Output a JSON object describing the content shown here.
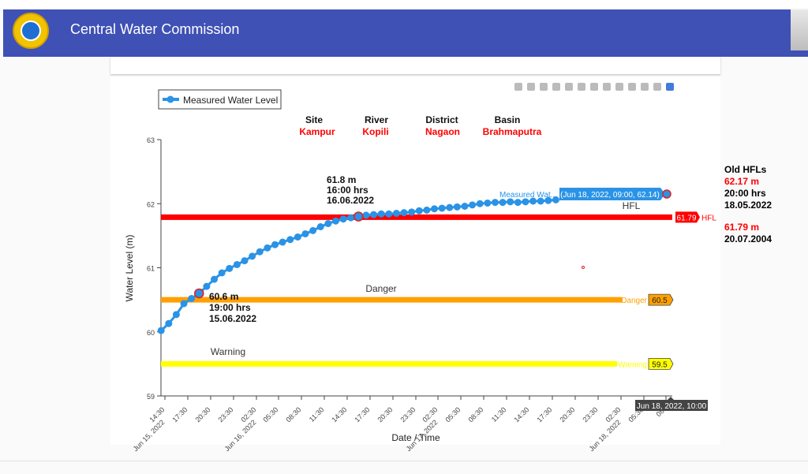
{
  "app": {
    "title": "Central Water Commission"
  },
  "modebar": {
    "icons": [
      "camera-icon",
      "zoom-icon",
      "pan-icon",
      "box-select-icon",
      "lasso-icon",
      "zoom-in-icon",
      "zoom-out-icon",
      "autoscale-icon",
      "reset-axes-icon",
      "spike-lines-icon",
      "hover-closest-icon",
      "hover-compare-icon",
      "plotly-logo-icon"
    ]
  },
  "info": {
    "site_label": "Site",
    "site_value": "Kampur",
    "river_label": "River",
    "river_value": "Kopili",
    "district_label": "District",
    "district_value": "Nagaon",
    "basin_label": "Basin",
    "basin_value": "Brahmaputra"
  },
  "annotations": {
    "low": {
      "level": "60.6 m",
      "time": "19:00 hrs",
      "date": "15.06.2022"
    },
    "mid": {
      "level": "61.8 m",
      "time": "16:00 hrs",
      "date": "16.06.2022"
    },
    "hover_label": "Measured Wat...",
    "hover_value": "(Jun 18, 2022, 09:00, 62.14)",
    "x_hover": "Jun 18, 2022, 10:00"
  },
  "old_hfls": {
    "title": "Old HFLs",
    "entries": [
      {
        "level": "62.17 m",
        "time": "20:00 hrs",
        "date": "18.05.2022"
      },
      {
        "level": "61.79 m",
        "date": "20.07.2004"
      }
    ]
  },
  "chart_data": {
    "type": "line",
    "title": "",
    "xlabel": "Date / Time",
    "ylabel": "Water Level (m)",
    "ylim": [
      59,
      63
    ],
    "yticks": [
      "59",
      "60",
      "61",
      "62",
      "63"
    ],
    "xticks": [
      "14:30",
      "Jun 15, 2022",
      "17:30",
      "20:30",
      "23:30",
      "02:30",
      "Jun 16, 2022",
      "05:30",
      "08:30",
      "11:30",
      "14:30",
      "17:30",
      "20:30",
      "23:30",
      "02:30",
      "Jun 17, 2022",
      "05:30",
      "08:30",
      "11:30",
      "14:30",
      "17:30",
      "20:30",
      "23:30",
      "02:30",
      "Jun 18, 2022",
      "05:30",
      "08:"
    ],
    "grid": false,
    "legend": "top-left",
    "series": [
      {
        "name": "Measured Water Level",
        "color": "#2a93e6",
        "x": [
          "15-06 14:00",
          "15-06 15:00",
          "15-06 16:00",
          "15-06 17:00",
          "15-06 18:00",
          "15-06 19:00",
          "15-06 20:00",
          "15-06 21:00",
          "15-06 22:00",
          "15-06 23:00",
          "16-06 00:00",
          "16-06 01:00",
          "16-06 02:00",
          "16-06 03:00",
          "16-06 04:00",
          "16-06 05:00",
          "16-06 06:00",
          "16-06 07:00",
          "16-06 08:00",
          "16-06 09:00",
          "16-06 10:00",
          "16-06 11:00",
          "16-06 12:00",
          "16-06 13:00",
          "16-06 14:00",
          "16-06 15:00",
          "16-06 16:00",
          "16-06 17:00",
          "16-06 18:00",
          "16-06 19:00",
          "16-06 20:00",
          "16-06 21:00",
          "16-06 22:00",
          "16-06 23:00",
          "17-06 00:00",
          "17-06 01:00",
          "17-06 02:00",
          "17-06 03:00",
          "17-06 04:00",
          "17-06 05:00",
          "17-06 06:00",
          "17-06 07:00",
          "17-06 08:00",
          "17-06 09:00",
          "17-06 10:00",
          "17-06 11:00",
          "17-06 12:00",
          "17-06 13:00",
          "17-06 14:00",
          "17-06 15:00",
          "17-06 16:00",
          "17-06 17:00",
          "17-06 18:00"
        ],
        "values": [
          60.02,
          60.13,
          60.27,
          60.44,
          60.52,
          60.6,
          60.71,
          60.82,
          60.92,
          60.99,
          61.05,
          61.11,
          61.18,
          61.25,
          61.31,
          61.36,
          61.4,
          61.44,
          61.48,
          61.53,
          61.58,
          61.64,
          61.69,
          61.73,
          61.76,
          61.78,
          61.8,
          61.82,
          61.83,
          61.84,
          61.84,
          61.85,
          61.86,
          61.87,
          61.89,
          61.9,
          61.92,
          61.93,
          61.94,
          61.95,
          61.96,
          61.98,
          62.0,
          62.01,
          62.02,
          62.02,
          62.03,
          62.02,
          62.03,
          62.04,
          62.04,
          62.05,
          62.06
        ]
      }
    ],
    "hover_point": {
      "x": "Jun 18, 2022, 09:00",
      "y": 62.14
    },
    "reference_lines": [
      {
        "name": "HFL",
        "value": 61.79,
        "label": "61.79",
        "color": "#ff0000"
      },
      {
        "name": "Danger",
        "value": 60.5,
        "label": "60.5",
        "color": "#ffa000"
      },
      {
        "name": "Warning",
        "value": 59.5,
        "label": "59.5",
        "color": "#ffff00"
      }
    ],
    "highlight_points": [
      {
        "x": "15-06 19:00",
        "y": 60.6
      },
      {
        "x": "16-06 16:00",
        "y": 61.8
      }
    ]
  }
}
